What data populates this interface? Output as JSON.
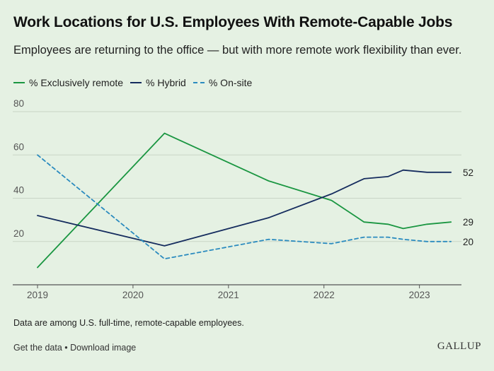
{
  "header": {
    "title": "Work Locations for U.S. Employees With Remote-Capable Jobs",
    "subtitle": "Employees are returning to the office — but with more remote work flexibility than ever."
  },
  "colors": {
    "remote": "#1a9641",
    "hybrid": "#152c5e",
    "onsite": "#2b8bbf",
    "background": "#e5f1e3"
  },
  "chart_data": {
    "type": "line",
    "x_axis": {
      "ticks": [
        "2019",
        "2020",
        "2021",
        "2022",
        "2023"
      ],
      "range": [
        2019,
        2023.44
      ]
    },
    "y_axis": {
      "ticks": [
        "20",
        "40",
        "60",
        "80"
      ],
      "range": [
        0,
        80
      ]
    },
    "grid": "horizontal",
    "legend_placement": "top-left",
    "series": [
      {
        "key": "remote",
        "name": "% Exclusively remote",
        "style": "solid",
        "x": [
          2019.0,
          2020.33,
          2021.42,
          2022.08,
          2022.42,
          2022.67,
          2022.83,
          2023.08,
          2023.33
        ],
        "y": [
          8,
          70,
          48,
          39,
          29,
          28,
          26,
          28,
          29
        ],
        "end_label": "29"
      },
      {
        "key": "hybrid",
        "name": "% Hybrid",
        "style": "solid",
        "x": [
          2019.0,
          2020.33,
          2021.42,
          2022.08,
          2022.42,
          2022.67,
          2022.83,
          2023.08,
          2023.33
        ],
        "y": [
          32,
          18,
          31,
          42,
          49,
          50,
          53,
          52,
          52
        ],
        "end_label": "52"
      },
      {
        "key": "onsite",
        "name": "% On-site",
        "style": "dashed",
        "x": [
          2019.0,
          2020.33,
          2021.42,
          2022.08,
          2022.42,
          2022.67,
          2022.83,
          2023.08,
          2023.33
        ],
        "y": [
          60,
          12,
          21,
          19,
          22,
          22,
          21,
          20,
          20
        ],
        "end_label": "20"
      }
    ]
  },
  "footnote": "Data are among U.S. full-time, remote-capable employees.",
  "links": {
    "get_data": "Get the data",
    "separator": " • ",
    "download": "Download image"
  },
  "brand": {
    "logo": "GALLUP"
  }
}
